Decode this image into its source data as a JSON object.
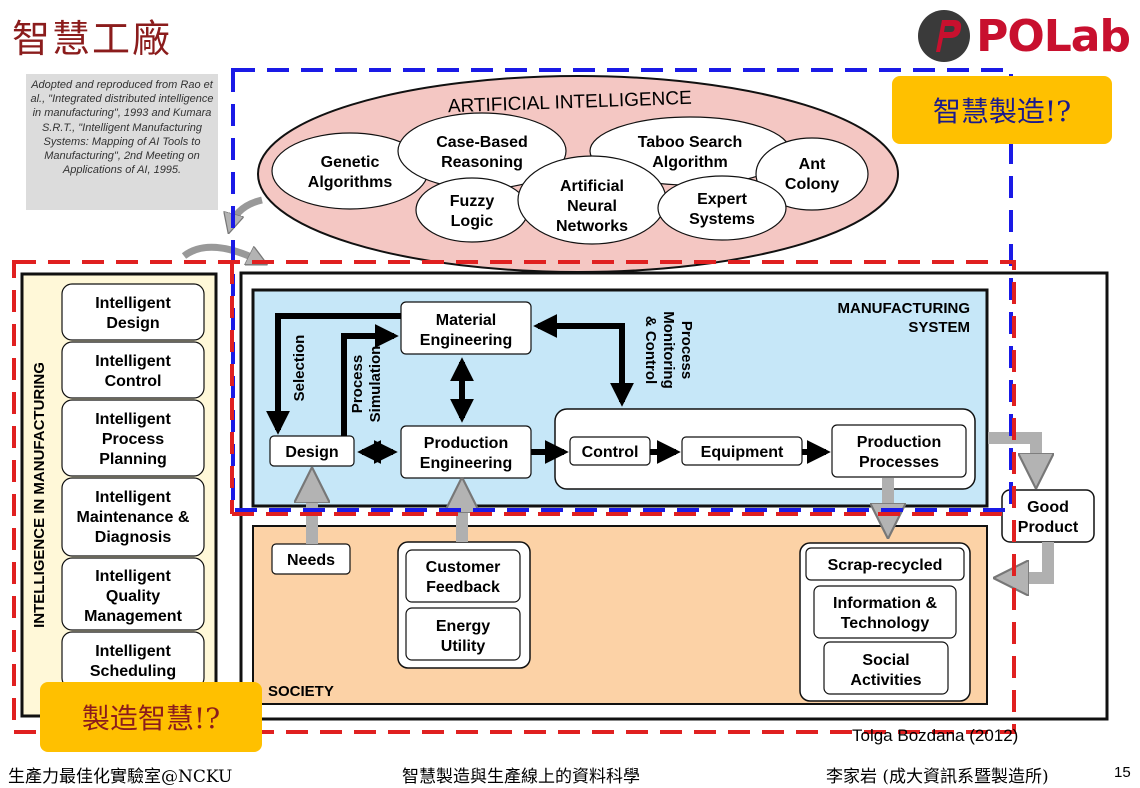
{
  "slide": {
    "title": "智慧工廠",
    "logo_text": "POLab",
    "citation": "Adopted and reproduced from Rao et al., \"Integrated distributed intelligence in manufacturing\", 1993 and Kumara S.R.T., \"Intelligent Manufacturing Systems: Mapping of AI Tools to Manufacturing\", 2nd Meeting on Applications of AI, 1995.",
    "callout_blue": "智慧製造!?",
    "callout_red": "製造智慧!?",
    "credit": "Tolga Bozdana (2012)",
    "footer_left": "生產力最佳化實驗室@NCKU",
    "footer_center": "智慧製造與生產線上的資料科學",
    "footer_right": "李家岩 (成大資訊系暨製造所)",
    "page_number": "15"
  },
  "ai": {
    "title": "ARTIFICIAL INTELLIGENCE",
    "genetic": [
      "Genetic",
      "Algorithms"
    ],
    "case_based": [
      "Case-Based",
      "Reasoning"
    ],
    "taboo": [
      "Taboo Search",
      "Algorithm"
    ],
    "ant": [
      "Ant",
      "Colony"
    ],
    "fuzzy": [
      "Fuzzy",
      "Logic"
    ],
    "ann": [
      "Artificial",
      "Neural",
      "Networks"
    ],
    "expert": [
      "Expert",
      "Systems"
    ]
  },
  "intelligence": {
    "vertical_label": "INTELLIGENCE IN MANUFACTURING",
    "design": [
      "Intelligent",
      "Design"
    ],
    "control": [
      "Intelligent",
      "Control"
    ],
    "process_planning": [
      "Intelligent",
      "Process",
      "Planning"
    ],
    "maintenance": [
      "Intelligent",
      "Maintenance &",
      "Diagnosis"
    ],
    "quality": [
      "Intelligent",
      "Quality",
      "Management"
    ],
    "scheduling": [
      "Intelligent",
      "Scheduling"
    ]
  },
  "manufacturing": {
    "title": [
      "MANUFACTURING",
      "SYSTEM"
    ],
    "material": [
      "Material",
      "Engineering"
    ],
    "production_eng": [
      "Production",
      "Engineering"
    ],
    "design": "Design",
    "control": "Control",
    "equipment": "Equipment",
    "production_proc": [
      "Production",
      "Processes"
    ],
    "selection": "Selection",
    "process_simulation": [
      "Process",
      "Simulation"
    ],
    "process_monitoring": [
      "Process",
      "Monitoring",
      "& Control"
    ],
    "good_product": [
      "Good",
      "Product"
    ]
  },
  "society": {
    "title": "SOCIETY",
    "needs": "Needs",
    "customer": [
      "Customer",
      "Feedback"
    ],
    "energy": [
      "Energy",
      "Utility"
    ],
    "scrap": "Scrap-recycled",
    "info_tech": [
      "Information &",
      "Technology"
    ],
    "social": [
      "Social",
      "Activities"
    ]
  }
}
